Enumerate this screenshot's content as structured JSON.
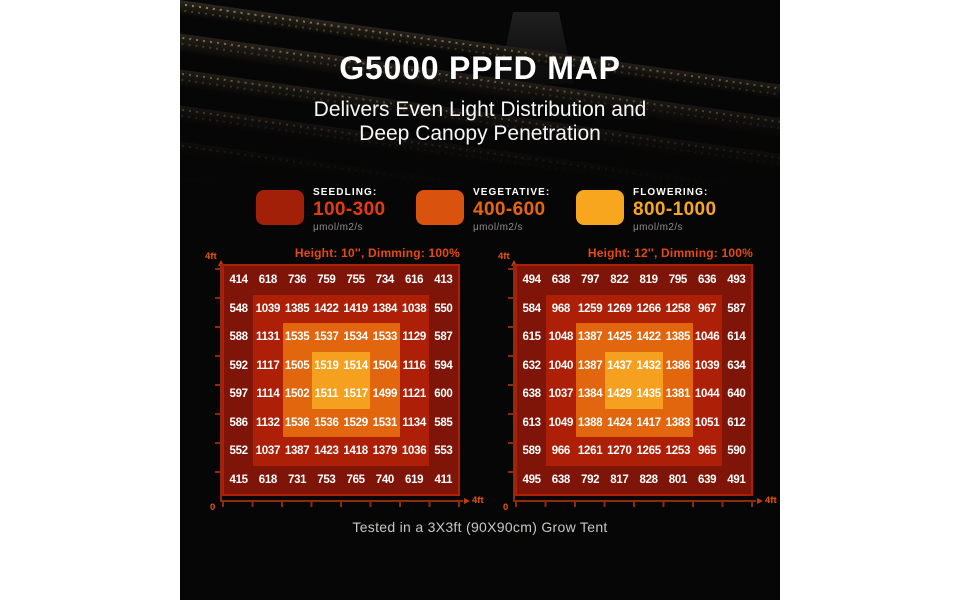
{
  "header": {
    "title": "G5000 PPFD MAP",
    "subtitle_line1": "Delivers Even Light Distribution and",
    "subtitle_line2": "Deep Canopy Penetration"
  },
  "legend": {
    "items": [
      {
        "name": "SEEDLING:",
        "range": "100-300",
        "unit": "μmol/m2/s",
        "swatch_color": "#a32008",
        "range_color": "#e73a0e"
      },
      {
        "name": "VEGETATIVE:",
        "range": "400-600",
        "unit": "μmol/m2/s",
        "swatch_color": "#d9530e",
        "range_color": "#e8650d"
      },
      {
        "name": "FLOWERING:",
        "range": "800-1000",
        "unit": "μmol/m2/s",
        "swatch_color": "#f8a61e",
        "range_color": "#f8a61e"
      }
    ]
  },
  "colors": {
    "zones": [
      "#7f1508",
      "#ad2007",
      "#e1660d",
      "#f6a01f"
    ],
    "panel_title": "#e8490e",
    "axis_label": "#e8550c",
    "axis_line": "#8f2a10"
  },
  "chart_data": [
    {
      "type": "heatmap",
      "title": "Height: 10'', Dimming: 100%",
      "unit": "μmol/m2/s",
      "x_axis": {
        "min_label": "0",
        "max_label": "4ft"
      },
      "y_axis": {
        "max_label": "4ft"
      },
      "values": [
        [
          414,
          618,
          736,
          759,
          755,
          734,
          616,
          413
        ],
        [
          548,
          1039,
          1385,
          1422,
          1419,
          1384,
          1038,
          550
        ],
        [
          588,
          1131,
          1535,
          1537,
          1534,
          1533,
          1129,
          587
        ],
        [
          592,
          1117,
          1505,
          1519,
          1514,
          1504,
          1116,
          594
        ],
        [
          597,
          1114,
          1502,
          1511,
          1517,
          1499,
          1121,
          600
        ],
        [
          586,
          1132,
          1536,
          1536,
          1529,
          1531,
          1134,
          585
        ],
        [
          552,
          1037,
          1387,
          1423,
          1418,
          1379,
          1036,
          553
        ],
        [
          415,
          618,
          731,
          753,
          765,
          740,
          619,
          411
        ]
      ]
    },
    {
      "type": "heatmap",
      "title": "Height: 12'', Dimming: 100%",
      "unit": "μmol/m2/s",
      "x_axis": {
        "min_label": "0",
        "max_label": "4ft"
      },
      "y_axis": {
        "max_label": "4ft"
      },
      "values": [
        [
          494,
          638,
          797,
          822,
          819,
          795,
          636,
          493
        ],
        [
          584,
          968,
          1259,
          1269,
          1266,
          1258,
          967,
          587
        ],
        [
          615,
          1048,
          1387,
          1425,
          1422,
          1385,
          1046,
          614
        ],
        [
          632,
          1040,
          1387,
          1437,
          1432,
          1386,
          1039,
          634
        ],
        [
          638,
          1037,
          1384,
          1429,
          1435,
          1381,
          1044,
          640
        ],
        [
          613,
          1049,
          1388,
          1424,
          1417,
          1383,
          1051,
          612
        ],
        [
          589,
          966,
          1261,
          1270,
          1265,
          1253,
          965,
          590
        ],
        [
          495,
          638,
          792,
          817,
          828,
          801,
          639,
          491
        ]
      ]
    }
  ],
  "footer": {
    "note": "Tested in a 3X3ft (90X90cm) Grow Tent"
  }
}
